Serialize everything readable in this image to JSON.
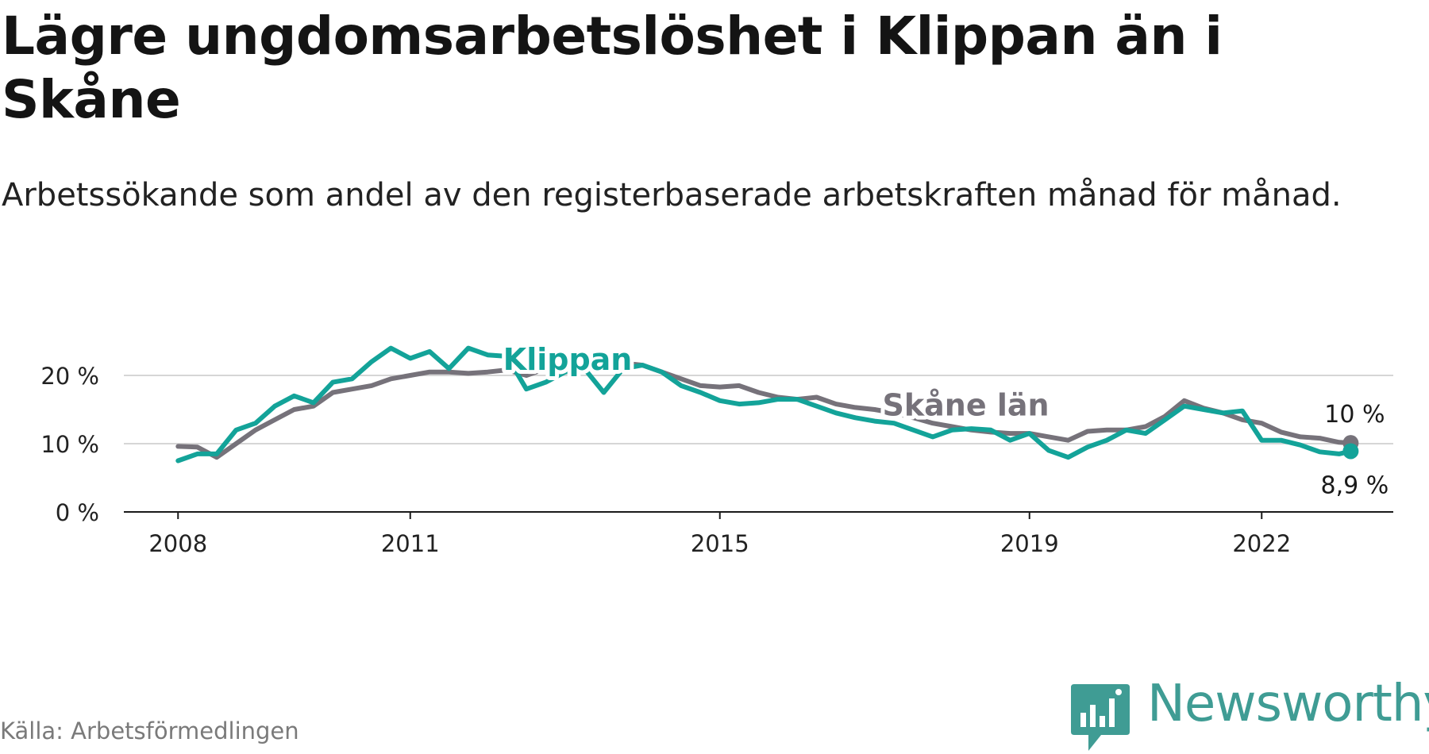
{
  "header": {
    "title": "Lägre ungdomsarbetslöshet i Klippan än i Skåne",
    "subtitle": "Arbetssökande som andel av den registerbaserade arbetskraften månad för månad."
  },
  "footer": {
    "source": "Källa: Arbetsförmedlingen",
    "brand": "Newsworthy"
  },
  "colors": {
    "klippan": "#13a399",
    "skane": "#76727a",
    "grid": "#d6d6d6",
    "axis": "#1a1a1a",
    "brand": "#3f9c94"
  },
  "chart_data": {
    "type": "line",
    "title": "Lägre ungdomsarbetslöshet i Klippan än i Skåne",
    "xlabel": "",
    "ylabel": "",
    "ylim": [
      0,
      25
    ],
    "xlim": [
      2007.3,
      2023.7
    ],
    "grid": true,
    "x_ticks": [
      {
        "value": 2008,
        "label": "2008"
      },
      {
        "value": 2011,
        "label": "2011"
      },
      {
        "value": 2015,
        "label": "2015"
      },
      {
        "value": 2019,
        "label": "2019"
      },
      {
        "value": 2022,
        "label": "2022"
      }
    ],
    "y_ticks": [
      {
        "value": 0,
        "label": "0 %"
      },
      {
        "value": 10,
        "label": "10 %"
      },
      {
        "value": 20,
        "label": "20 %"
      }
    ],
    "series": [
      {
        "name": "Skåne län",
        "label": "Skåne län",
        "end_label": "10 %",
        "points": [
          [
            2008.0,
            9.6
          ],
          [
            2008.25,
            9.5
          ],
          [
            2008.5,
            8.0
          ],
          [
            2008.75,
            10.0
          ],
          [
            2009.0,
            12.0
          ],
          [
            2009.25,
            13.5
          ],
          [
            2009.5,
            15.0
          ],
          [
            2009.75,
            15.5
          ],
          [
            2010.0,
            17.5
          ],
          [
            2010.25,
            18.0
          ],
          [
            2010.5,
            18.5
          ],
          [
            2010.75,
            19.5
          ],
          [
            2011.0,
            20.0
          ],
          [
            2011.25,
            20.5
          ],
          [
            2011.5,
            20.5
          ],
          [
            2011.75,
            20.3
          ],
          [
            2012.0,
            20.5
          ],
          [
            2012.25,
            20.8
          ],
          [
            2012.5,
            20.0
          ],
          [
            2012.75,
            21.0
          ],
          [
            2013.0,
            20.5
          ],
          [
            2013.25,
            21.0
          ],
          [
            2013.5,
            21.5
          ],
          [
            2013.75,
            21.8
          ],
          [
            2014.0,
            21.5
          ],
          [
            2014.25,
            20.5
          ],
          [
            2014.5,
            19.5
          ],
          [
            2014.75,
            18.5
          ],
          [
            2015.0,
            18.3
          ],
          [
            2015.25,
            18.5
          ],
          [
            2015.5,
            17.5
          ],
          [
            2015.75,
            16.8
          ],
          [
            2016.0,
            16.5
          ],
          [
            2016.25,
            16.8
          ],
          [
            2016.5,
            15.8
          ],
          [
            2016.75,
            15.3
          ],
          [
            2017.0,
            15.0
          ],
          [
            2017.25,
            14.5
          ],
          [
            2017.5,
            13.8
          ],
          [
            2017.75,
            13.0
          ],
          [
            2018.0,
            12.5
          ],
          [
            2018.25,
            12.0
          ],
          [
            2018.5,
            11.7
          ],
          [
            2018.75,
            11.5
          ],
          [
            2019.0,
            11.5
          ],
          [
            2019.25,
            11.0
          ],
          [
            2019.5,
            10.5
          ],
          [
            2019.75,
            11.8
          ],
          [
            2020.0,
            12.0
          ],
          [
            2020.25,
            12.0
          ],
          [
            2020.5,
            12.5
          ],
          [
            2020.75,
            14.0
          ],
          [
            2021.0,
            16.3
          ],
          [
            2021.25,
            15.2
          ],
          [
            2021.5,
            14.5
          ],
          [
            2021.75,
            13.5
          ],
          [
            2022.0,
            13.0
          ],
          [
            2022.25,
            11.7
          ],
          [
            2022.5,
            11.0
          ],
          [
            2022.75,
            10.8
          ],
          [
            2023.0,
            10.2
          ],
          [
            2023.15,
            10.1
          ]
        ]
      },
      {
        "name": "Klippan",
        "label": "Klippan",
        "end_label": "8,9 %",
        "points": [
          [
            2008.0,
            7.5
          ],
          [
            2008.25,
            8.5
          ],
          [
            2008.5,
            8.5
          ],
          [
            2008.75,
            12.0
          ],
          [
            2009.0,
            13.0
          ],
          [
            2009.25,
            15.5
          ],
          [
            2009.5,
            17.0
          ],
          [
            2009.75,
            16.0
          ],
          [
            2010.0,
            19.0
          ],
          [
            2010.25,
            19.5
          ],
          [
            2010.5,
            22.0
          ],
          [
            2010.75,
            24.0
          ],
          [
            2011.0,
            22.5
          ],
          [
            2011.25,
            23.5
          ],
          [
            2011.5,
            21.0
          ],
          [
            2011.75,
            24.0
          ],
          [
            2012.0,
            23.0
          ],
          [
            2012.25,
            22.8
          ],
          [
            2012.5,
            18.0
          ],
          [
            2012.75,
            19.0
          ],
          [
            2013.0,
            20.5
          ],
          [
            2013.25,
            21.0
          ],
          [
            2013.5,
            17.5
          ],
          [
            2013.75,
            21.0
          ],
          [
            2014.0,
            21.5
          ],
          [
            2014.25,
            20.5
          ],
          [
            2014.5,
            18.5
          ],
          [
            2014.75,
            17.5
          ],
          [
            2015.0,
            16.3
          ],
          [
            2015.25,
            15.8
          ],
          [
            2015.5,
            16.0
          ],
          [
            2015.75,
            16.5
          ],
          [
            2016.0,
            16.5
          ],
          [
            2016.25,
            15.5
          ],
          [
            2016.5,
            14.5
          ],
          [
            2016.75,
            13.8
          ],
          [
            2017.0,
            13.3
          ],
          [
            2017.25,
            13.0
          ],
          [
            2017.5,
            12.0
          ],
          [
            2017.75,
            11.0
          ],
          [
            2018.0,
            12.0
          ],
          [
            2018.25,
            12.2
          ],
          [
            2018.5,
            12.0
          ],
          [
            2018.75,
            10.5
          ],
          [
            2019.0,
            11.5
          ],
          [
            2019.25,
            9.0
          ],
          [
            2019.5,
            8.0
          ],
          [
            2019.75,
            9.5
          ],
          [
            2020.0,
            10.5
          ],
          [
            2020.25,
            12.0
          ],
          [
            2020.5,
            11.5
          ],
          [
            2020.75,
            13.5
          ],
          [
            2021.0,
            15.5
          ],
          [
            2021.25,
            15.0
          ],
          [
            2021.5,
            14.5
          ],
          [
            2021.75,
            14.8
          ],
          [
            2022.0,
            10.5
          ],
          [
            2022.25,
            10.5
          ],
          [
            2022.5,
            9.8
          ],
          [
            2022.75,
            8.8
          ],
          [
            2023.0,
            8.5
          ],
          [
            2023.15,
            8.9
          ]
        ]
      }
    ]
  }
}
